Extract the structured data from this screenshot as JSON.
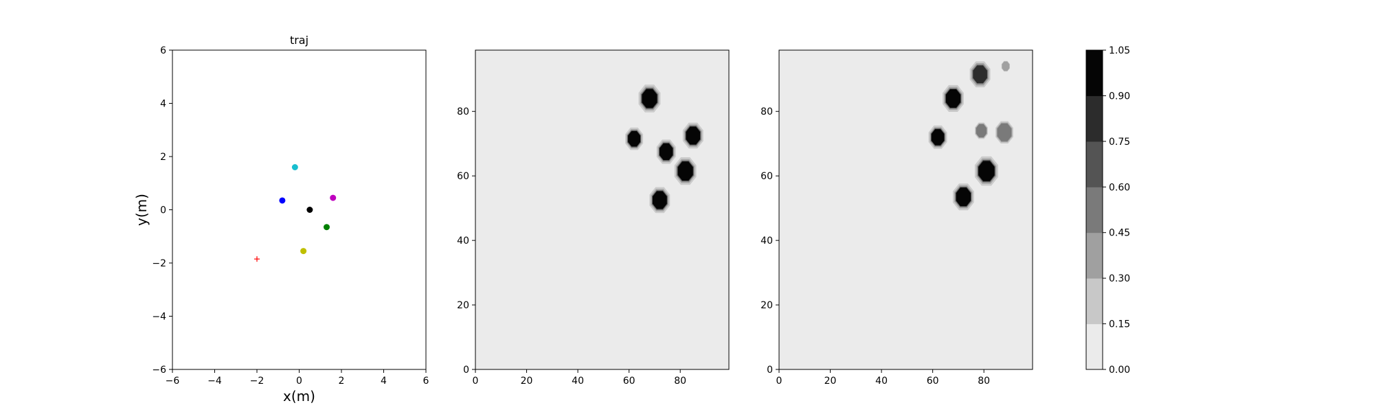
{
  "chart_data": [
    {
      "type": "scatter",
      "title": "traj",
      "xlabel": "x(m)",
      "ylabel": "y(m)",
      "xlim": [
        -6,
        6
      ],
      "ylim": [
        -6,
        6
      ],
      "xticks": [
        "−6",
        "−4",
        "−2",
        "0",
        "2",
        "4",
        "6"
      ],
      "yticks": [
        "−6",
        "−4",
        "−2",
        "0",
        "2",
        "4",
        "6"
      ],
      "grid": false,
      "points": [
        {
          "x": -0.2,
          "y": 1.6,
          "color": "#17becf",
          "marker": "circle"
        },
        {
          "x": -0.8,
          "y": 0.35,
          "color": "#0000ff",
          "marker": "circle"
        },
        {
          "x": 0.5,
          "y": 0.0,
          "color": "#000000",
          "marker": "circle"
        },
        {
          "x": 1.6,
          "y": 0.45,
          "color": "#bf00bf",
          "marker": "circle"
        },
        {
          "x": 1.3,
          "y": -0.65,
          "color": "#008000",
          "marker": "circle"
        },
        {
          "x": 0.2,
          "y": -1.55,
          "color": "#bfbf00",
          "marker": "circle"
        },
        {
          "x": -2.0,
          "y": -1.85,
          "color": "#ff0000",
          "marker": "plus"
        }
      ]
    },
    {
      "type": "heatmap",
      "xlim": [
        0,
        99
      ],
      "ylim": [
        0,
        99
      ],
      "xticks": [
        "0",
        "20",
        "40",
        "60",
        "80"
      ],
      "yticks": [
        "0",
        "20",
        "40",
        "60",
        "80"
      ],
      "background_level": 0.0,
      "blobs": [
        {
          "x": 68,
          "y": 84,
          "r": 3.2,
          "level": 1.0
        },
        {
          "x": 62,
          "y": 71.5,
          "r": 2.6,
          "level": 1.0
        },
        {
          "x": 74.5,
          "y": 67.5,
          "r": 2.8,
          "level": 1.0
        },
        {
          "x": 85,
          "y": 72.5,
          "r": 3.0,
          "level": 1.0
        },
        {
          "x": 82,
          "y": 61.5,
          "r": 3.2,
          "level": 1.0
        },
        {
          "x": 72,
          "y": 52.5,
          "r": 3.0,
          "level": 1.0
        }
      ]
    },
    {
      "type": "heatmap",
      "xlim": [
        0,
        99
      ],
      "ylim": [
        0,
        99
      ],
      "xticks": [
        "0",
        "20",
        "40",
        "60",
        "80"
      ],
      "yticks": [
        "0",
        "20",
        "40",
        "60",
        "80"
      ],
      "background_level": 0.0,
      "blobs": [
        {
          "x": 68,
          "y": 84,
          "r": 3.1,
          "level": 1.0
        },
        {
          "x": 62,
          "y": 72,
          "r": 2.7,
          "level": 1.0
        },
        {
          "x": 72,
          "y": 53.5,
          "r": 3.1,
          "level": 1.0
        },
        {
          "x": 81,
          "y": 61.5,
          "r": 3.4,
          "level": 0.95
        },
        {
          "x": 78.5,
          "y": 91.5,
          "r": 3.0,
          "level": 0.8
        },
        {
          "x": 88,
          "y": 73.5,
          "r": 3.0,
          "level": 0.55
        },
        {
          "x": 79,
          "y": 74,
          "r": 2.2,
          "level": 0.55
        },
        {
          "x": 88.5,
          "y": 94,
          "r": 1.6,
          "level": 0.35
        }
      ]
    }
  ],
  "colorbar": {
    "levels": [
      "0.00",
      "0.15",
      "0.30",
      "0.45",
      "0.60",
      "0.75",
      "0.90",
      "1.05"
    ],
    "colors": [
      "#ebebeb",
      "#c8c8c8",
      "#a0a0a0",
      "#7a7a7a",
      "#545454",
      "#2c2c2c",
      "#050505"
    ]
  }
}
